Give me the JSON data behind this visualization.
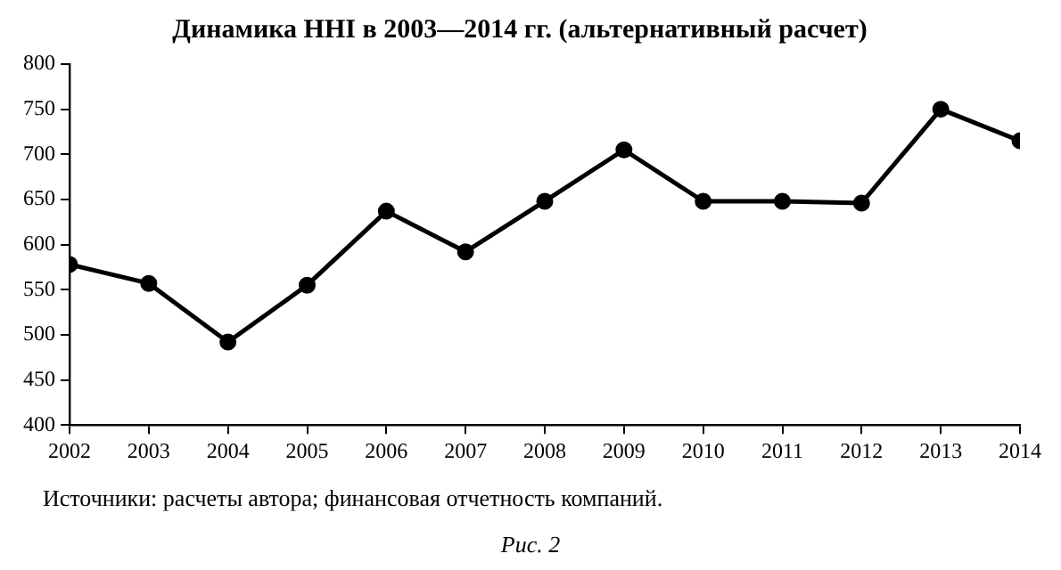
{
  "chart_data": {
    "type": "line",
    "title": "Динамика ННІ в 2003—2014 гг. (альтернативный расчет)",
    "x": [
      2002,
      2003,
      2004,
      2005,
      2006,
      2007,
      2008,
      2009,
      2010,
      2011,
      2012,
      2013,
      2014
    ],
    "series": [
      {
        "color": "#000000",
        "values": [
          578,
          557,
          492,
          555,
          637,
          592,
          648,
          705,
          648,
          648,
          646,
          750,
          715
        ]
      }
    ],
    "xlim": [
      2002,
      2014
    ],
    "xticks": [
      2002,
      2003,
      2004,
      2005,
      2006,
      2007,
      2008,
      2009,
      2010,
      2011,
      2012,
      2013,
      2014
    ],
    "ylim": [
      400,
      800
    ],
    "yticks": [
      400,
      450,
      500,
      550,
      600,
      650,
      700,
      750,
      800
    ],
    "grid": false,
    "legend": false,
    "marker": "circle",
    "line_style": "solid",
    "annotations": [
      "Источники: расчеты автора; финансовая отчетность компаний.",
      "Рис. 2"
    ]
  }
}
